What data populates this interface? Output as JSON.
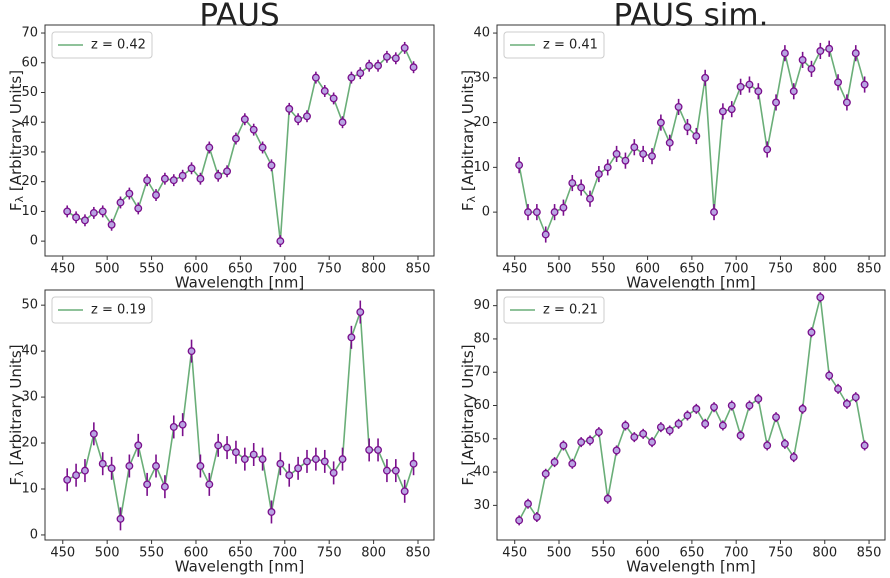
{
  "chart_data": [
    {
      "type": "line",
      "title": "PAUS",
      "x_label": "Wavelength [nm]",
      "y_label": "F",
      "y_label_sub": "λ",
      "y_label_rest": " [Arbitrary Units]",
      "xlim": [
        430,
        868
      ],
      "ylim": [
        -5,
        72.7
      ],
      "xticks": [
        450,
        500,
        550,
        600,
        650,
        700,
        750,
        800,
        850
      ],
      "yticks": [
        0,
        10,
        20,
        30,
        40,
        50,
        60,
        70
      ],
      "x": [
        455,
        465,
        475,
        485,
        495,
        505,
        515,
        525,
        535,
        545,
        555,
        565,
        575,
        585,
        595,
        605,
        615,
        625,
        635,
        645,
        655,
        665,
        675,
        685,
        695,
        705,
        715,
        725,
        735,
        745,
        755,
        765,
        775,
        785,
        795,
        805,
        815,
        825,
        835,
        845
      ],
      "series": [
        {
          "name": "z = 0.42",
          "color": "#6aae78",
          "marker_color": "#7a0f8c",
          "values": [
            10,
            8,
            7,
            9.5,
            10,
            5.5,
            13,
            16,
            11,
            20.5,
            15.5,
            21,
            20.5,
            22,
            24.5,
            21,
            31.5,
            22,
            23.5,
            34.5,
            41,
            37.5,
            31.5,
            25.5,
            0,
            44.5,
            41,
            42,
            55,
            50.5,
            48,
            40,
            55,
            56.5,
            59,
            59,
            62,
            61.5,
            65,
            58.5
          ],
          "errors": [
            2,
            2,
            2,
            2,
            2,
            2,
            2,
            2,
            2,
            2,
            2,
            2,
            2,
            2,
            2,
            2,
            2,
            2,
            2,
            2,
            2,
            2,
            2,
            2,
            2,
            2,
            2,
            2,
            2,
            2,
            2,
            2,
            2,
            2,
            2,
            2,
            2,
            2,
            2,
            2
          ]
        }
      ]
    },
    {
      "type": "line",
      "title": "PAUS sim.",
      "x_label": "Wavelength [nm]",
      "y_label": "F",
      "y_label_sub": "λ",
      "y_label_rest": " [Arbitrary Units]",
      "xlim": [
        430,
        868
      ],
      "ylim": [
        -9.8,
        41.8
      ],
      "xticks": [
        450,
        500,
        550,
        600,
        650,
        700,
        750,
        800,
        850
      ],
      "yticks": [
        0,
        10,
        20,
        30,
        40
      ],
      "x": [
        455,
        465,
        475,
        485,
        495,
        505,
        515,
        525,
        535,
        545,
        555,
        565,
        575,
        585,
        595,
        605,
        615,
        625,
        635,
        645,
        655,
        665,
        675,
        685,
        695,
        705,
        715,
        725,
        735,
        745,
        755,
        765,
        775,
        785,
        795,
        805,
        815,
        825,
        835,
        845
      ],
      "series": [
        {
          "name": "z = 0.41",
          "color": "#6aae78",
          "marker_color": "#7a0f8c",
          "values": [
            10.5,
            0,
            0,
            -5,
            0,
            1,
            6.5,
            5.5,
            3,
            8.5,
            10,
            13,
            11.5,
            14.5,
            13,
            12.5,
            20,
            15.5,
            23.5,
            19,
            17,
            30,
            0,
            22.5,
            23,
            28,
            28.5,
            27,
            14,
            24.5,
            35.5,
            27,
            34,
            32,
            36,
            36.5,
            29,
            24.5,
            35.5,
            28.5
          ],
          "errors": [
            1.8,
            1.8,
            1.8,
            1.8,
            1.8,
            1.8,
            1.8,
            1.8,
            1.8,
            1.8,
            1.8,
            1.8,
            1.8,
            1.8,
            1.8,
            1.8,
            1.8,
            1.8,
            1.8,
            1.8,
            1.8,
            1.8,
            1.8,
            1.8,
            1.8,
            1.8,
            1.8,
            1.8,
            1.8,
            1.8,
            1.8,
            1.8,
            1.8,
            1.8,
            1.8,
            1.8,
            1.8,
            1.8,
            1.8,
            1.8
          ]
        }
      ]
    },
    {
      "type": "line",
      "x_label": "Wavelength [nm]",
      "y_label": "F",
      "y_label_sub": "λ",
      "y_label_rest": " [Arbitrary Units]",
      "xlim": [
        430,
        868
      ],
      "ylim": [
        -1.1,
        53.3
      ],
      "xticks": [
        450,
        500,
        550,
        600,
        650,
        700,
        750,
        800,
        850
      ],
      "yticks": [
        0,
        10,
        20,
        30,
        40,
        50
      ],
      "x": [
        455,
        465,
        475,
        485,
        495,
        505,
        515,
        525,
        535,
        545,
        555,
        565,
        575,
        585,
        595,
        605,
        615,
        625,
        635,
        645,
        655,
        665,
        675,
        685,
        695,
        705,
        715,
        725,
        735,
        745,
        755,
        765,
        775,
        785,
        795,
        805,
        815,
        825,
        835,
        845
      ],
      "series": [
        {
          "name": "z = 0.19",
          "color": "#6aae78",
          "marker_color": "#7a0f8c",
          "values": [
            12,
            13,
            14,
            22,
            15.5,
            14.5,
            3.5,
            15,
            19.5,
            11,
            15,
            10.5,
            23.5,
            24,
            40,
            15,
            11,
            19.5,
            19,
            18,
            16.5,
            17.5,
            16.5,
            5,
            15.5,
            13,
            14.5,
            16,
            16.5,
            16,
            13.5,
            16.5,
            43,
            48.5,
            18.5,
            18.5,
            14,
            14,
            9.5,
            15.5
          ],
          "errors": [
            2.5,
            2.5,
            2.5,
            2.5,
            2.5,
            2.5,
            2.5,
            2.5,
            2.5,
            2.5,
            2.5,
            2.5,
            2.5,
            2.5,
            2.5,
            2.5,
            2.5,
            2.5,
            2.5,
            2.5,
            2.5,
            2.5,
            2.5,
            2.5,
            2.5,
            2.5,
            2.5,
            2.5,
            2.5,
            2.5,
            2.5,
            2.5,
            2.5,
            2.5,
            2.5,
            2.5,
            2.5,
            2.5,
            2.5,
            2.5
          ]
        }
      ]
    },
    {
      "type": "line",
      "x_label": "Wavelength [nm]",
      "y_label": "F",
      "y_label_sub": "λ",
      "y_label_rest": " [Arbitrary Units]",
      "xlim": [
        430,
        868
      ],
      "ylim": [
        19.6,
        94.7
      ],
      "xticks": [
        450,
        500,
        550,
        600,
        650,
        700,
        750,
        800,
        850
      ],
      "yticks": [
        30,
        40,
        50,
        60,
        70,
        80,
        90
      ],
      "x": [
        455,
        465,
        475,
        485,
        495,
        505,
        515,
        525,
        535,
        545,
        555,
        565,
        575,
        585,
        595,
        605,
        615,
        625,
        635,
        645,
        655,
        665,
        675,
        685,
        695,
        705,
        715,
        725,
        735,
        745,
        755,
        765,
        775,
        785,
        795,
        805,
        815,
        825,
        835,
        845
      ],
      "series": [
        {
          "name": "z = 0.21",
          "color": "#6aae78",
          "marker_color": "#7a0f8c",
          "values": [
            25.5,
            30.5,
            26.5,
            39.5,
            43,
            48,
            42.5,
            49,
            49.5,
            52,
            32,
            46.5,
            54,
            50.5,
            51.5,
            49,
            53.5,
            52.5,
            54.5,
            57,
            59,
            54.5,
            59.5,
            54,
            60,
            51,
            60,
            62,
            48,
            56.5,
            48.5,
            44.5,
            59,
            82,
            92.5,
            69,
            65,
            60.5,
            62.5,
            48
          ],
          "errors": [
            1.5,
            1.5,
            1.5,
            1.5,
            1.5,
            1.5,
            1.5,
            1.5,
            1.5,
            1.5,
            1.5,
            1.5,
            1.5,
            1.5,
            1.5,
            1.5,
            1.5,
            1.5,
            1.5,
            1.5,
            1.5,
            1.5,
            1.5,
            1.5,
            1.5,
            1.5,
            1.5,
            1.5,
            1.5,
            1.5,
            1.5,
            1.5,
            1.5,
            1.5,
            1.5,
            1.5,
            1.5,
            1.5,
            1.5,
            1.5
          ]
        }
      ]
    }
  ]
}
